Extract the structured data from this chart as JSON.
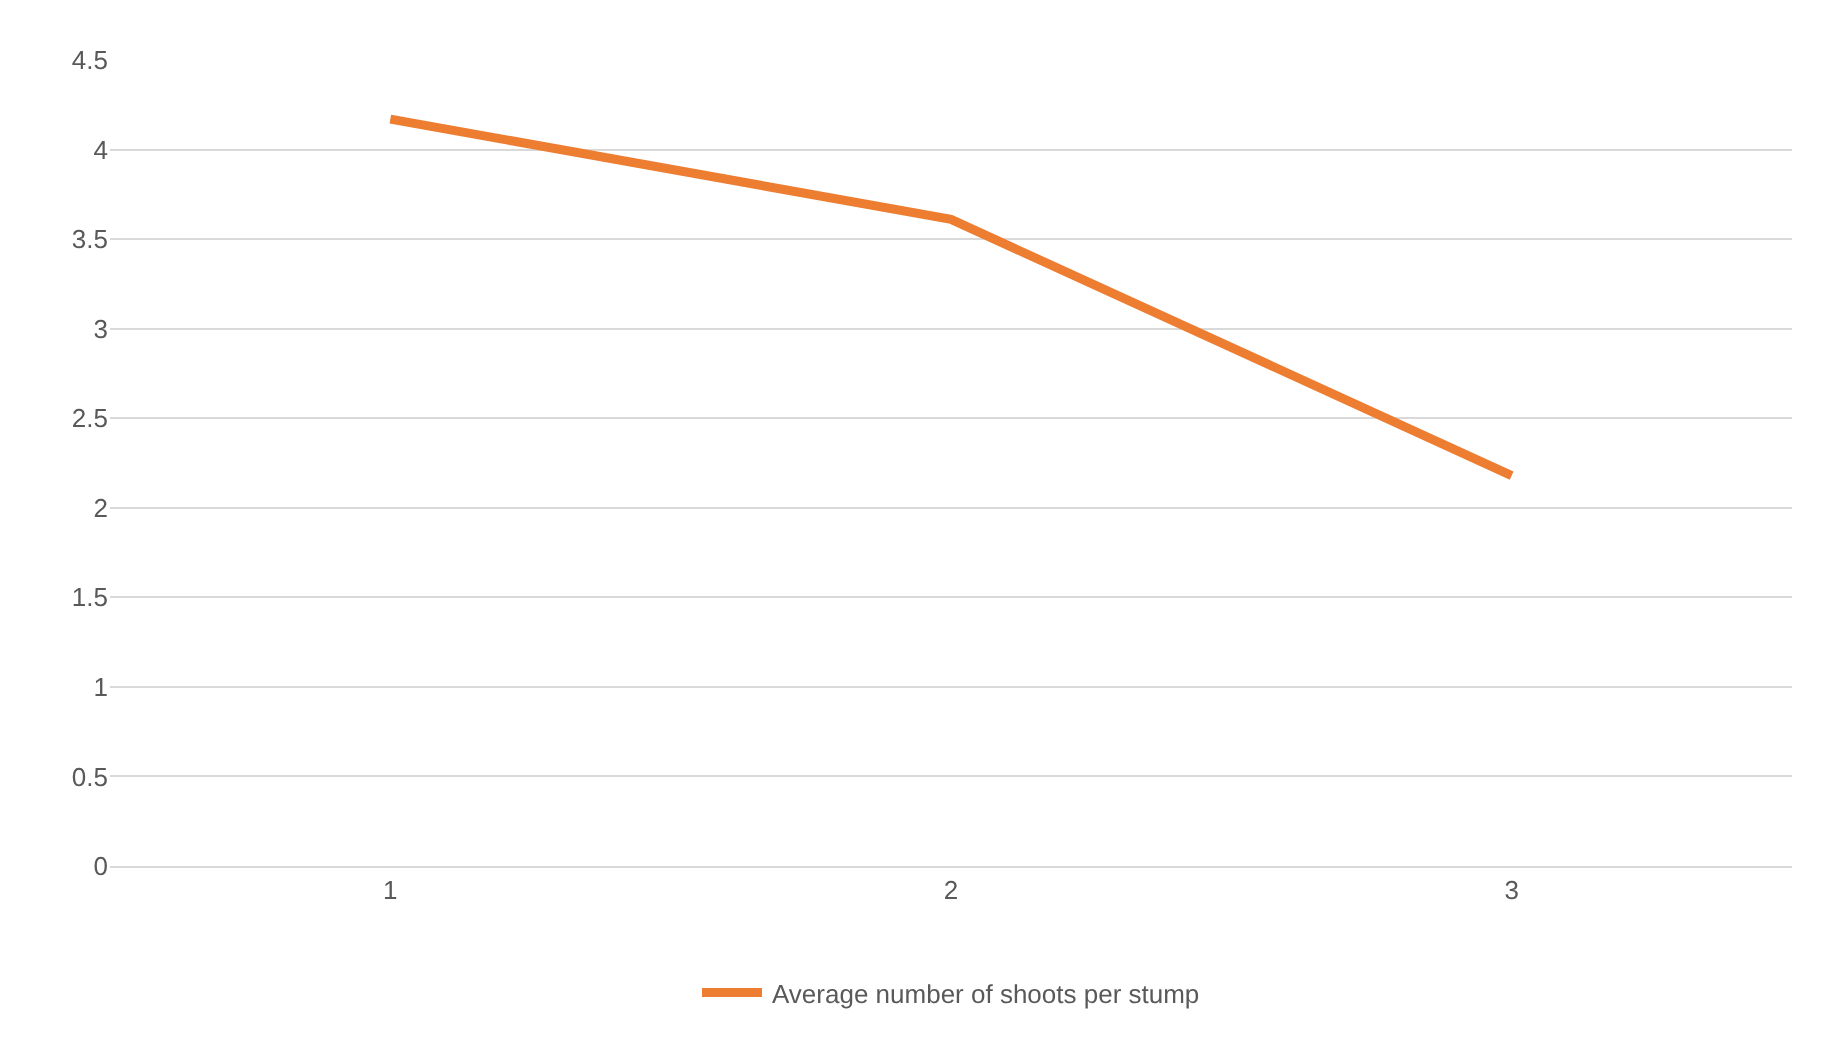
{
  "chart_data": {
    "type": "line",
    "categories": [
      "1",
      "2",
      "3"
    ],
    "series": [
      {
        "name": "Average number of shoots per stump",
        "color": "#ed7d31",
        "values": [
          4.17,
          3.61,
          2.18
        ]
      }
    ],
    "ylim": [
      0,
      4.5
    ],
    "yticks": [
      0,
      0.5,
      1,
      1.5,
      2,
      2.5,
      3,
      3.5,
      4,
      4.5
    ],
    "grid": "y",
    "legend": "bottom",
    "marker": "none",
    "line_style": "solid"
  }
}
